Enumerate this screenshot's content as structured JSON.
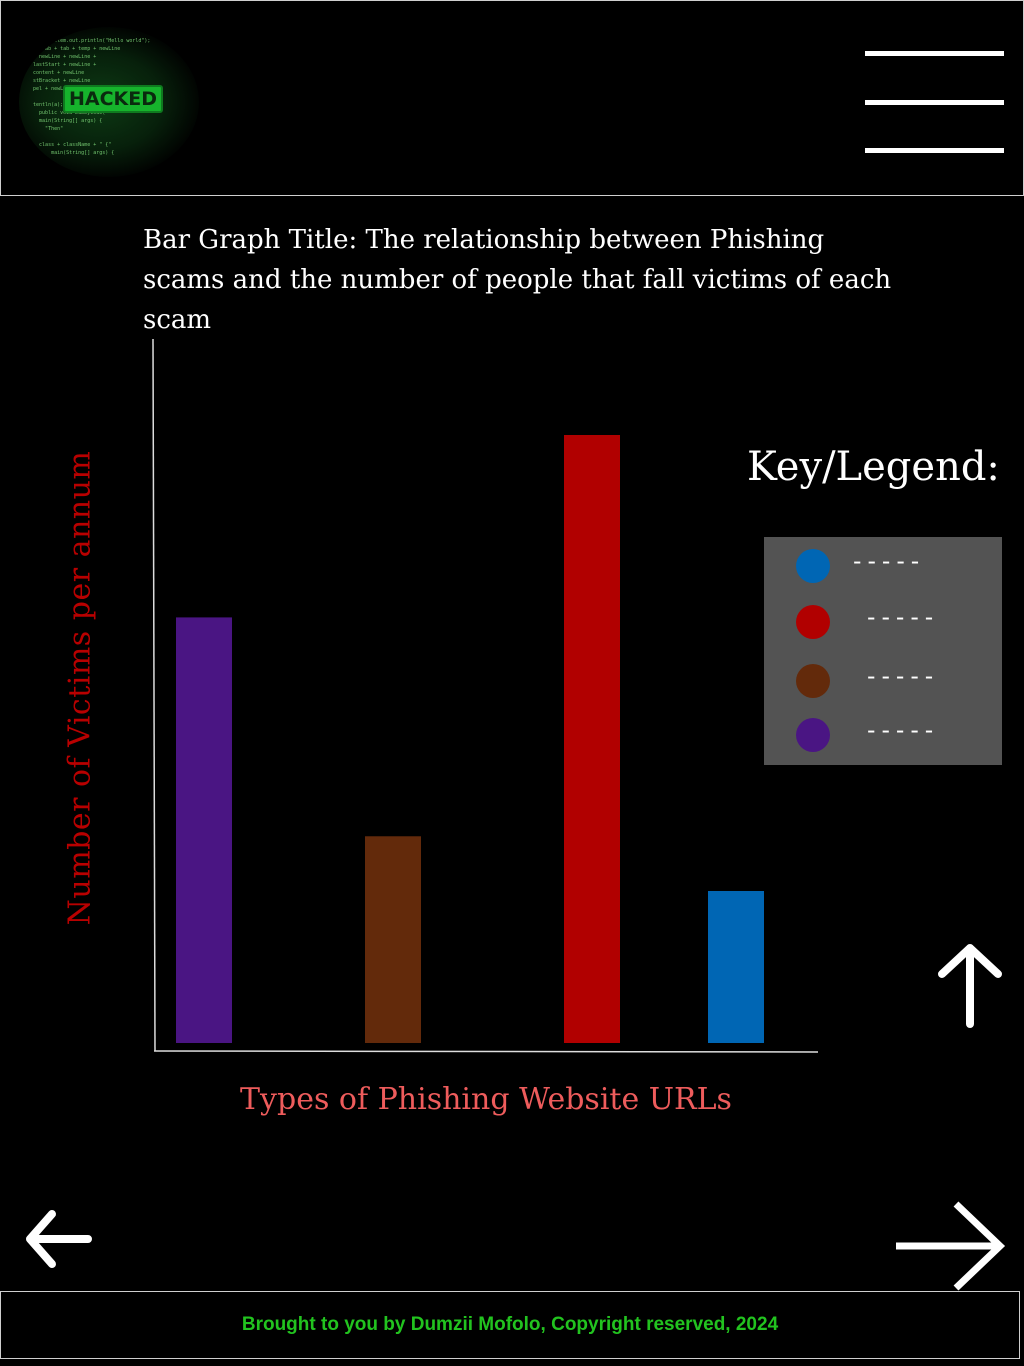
{
  "header": {
    "logo_badge": "HACKED",
    "menu_icon": "hamburger-menu-icon"
  },
  "chart_data": {
    "type": "bar",
    "title": "Bar Graph Title: The relationship between Phishing scams and the number of people that fall victims of each scam",
    "xlabel": "Types of Phishing Website URLs",
    "ylabel": "Number of Victims per annum",
    "categories": [
      "",
      "",
      "",
      ""
    ],
    "values": [
      70,
      34,
      100,
      25
    ],
    "colors": [
      "#4a1583",
      "#632a0b",
      "#b10000",
      "#0066b4"
    ],
    "ylim": [
      0,
      100
    ],
    "grid": false,
    "legend_position": "right"
  },
  "legend": {
    "title": "Key/Legend:",
    "items": [
      {
        "color": "#0066b4",
        "label": "-----"
      },
      {
        "color": "#b10000",
        "label": "-----"
      },
      {
        "color": "#632a0b",
        "label": "-----"
      },
      {
        "color": "#4a1583",
        "label": "-----"
      }
    ]
  },
  "nav": {
    "up_icon": "arrow-up-icon",
    "back_icon": "arrow-left-icon",
    "next_icon": "arrow-right-icon"
  },
  "footer": {
    "text": "Brought to you by Dumzii Mofolo, Copyright reserved, 2024"
  }
}
